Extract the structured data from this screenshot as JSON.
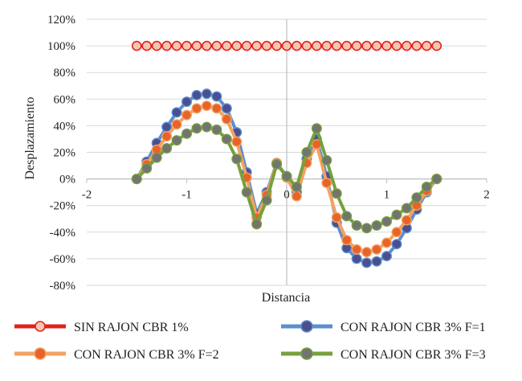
{
  "chart_data": {
    "type": "line",
    "xlabel": "Distancia",
    "ylabel": "Desplazamiento",
    "xlim": [
      -2,
      2
    ],
    "ylim": [
      -0.8,
      1.2
    ],
    "x_ticks": [
      "-2",
      "-1",
      "0",
      "1",
      "2"
    ],
    "y_ticks": [
      "-80%",
      "-60%",
      "-40%",
      "-20%",
      "0%",
      "20%",
      "40%",
      "60%",
      "80%",
      "100%",
      "120%"
    ],
    "grid": "horizontal",
    "legend_position": "bottom",
    "x": [
      -1.5,
      -1.4,
      -1.3,
      -1.2,
      -1.1,
      -1.0,
      -0.9,
      -0.8,
      -0.7,
      -0.6,
      -0.5,
      -0.4,
      -0.3,
      -0.2,
      -0.1,
      0.0,
      0.1,
      0.2,
      0.3,
      0.4,
      0.5,
      0.6,
      0.7,
      0.8,
      0.9,
      1.0,
      1.1,
      1.2,
      1.3,
      1.4,
      1.5
    ],
    "series": [
      {
        "name": "SIN RAJON CBR  1%",
        "color": "#e2231a",
        "marker_fill": "#f5c6b6",
        "values": [
          1,
          1,
          1,
          1,
          1,
          1,
          1,
          1,
          1,
          1,
          1,
          1,
          1,
          1,
          1,
          1,
          1,
          1,
          1,
          1,
          1,
          1,
          1,
          1,
          1,
          1,
          1,
          1,
          1,
          1,
          1
        ]
      },
      {
        "name": "CON RAJON CBR 3% F=1",
        "color": "#5b8fcf",
        "marker_fill": "#4b4f8f",
        "values": [
          0.0,
          0.13,
          0.27,
          0.39,
          0.5,
          0.58,
          0.63,
          0.64,
          0.62,
          0.53,
          0.35,
          0.05,
          -0.26,
          -0.1,
          0.12,
          0.02,
          -0.1,
          0.15,
          0.3,
          0.02,
          -0.33,
          -0.52,
          -0.6,
          -0.63,
          -0.62,
          -0.58,
          -0.49,
          -0.37,
          -0.23,
          -0.1,
          0.0
        ]
      },
      {
        "name": "CON RAJON CBR 3% F=2",
        "color": "#f4a261",
        "marker_fill": "#e8632a",
        "values": [
          0.0,
          0.11,
          0.22,
          0.32,
          0.41,
          0.48,
          0.53,
          0.55,
          0.53,
          0.45,
          0.28,
          0.01,
          -0.29,
          -0.12,
          0.12,
          0.01,
          -0.13,
          0.12,
          0.26,
          -0.03,
          -0.29,
          -0.46,
          -0.53,
          -0.55,
          -0.53,
          -0.48,
          -0.4,
          -0.31,
          -0.2,
          -0.09,
          0.0
        ]
      },
      {
        "name": "CON RAJON CBR 3% F=3",
        "color": "#77a03c",
        "marker_fill": "#737373",
        "values": [
          0.0,
          0.08,
          0.16,
          0.23,
          0.29,
          0.34,
          0.38,
          0.39,
          0.37,
          0.3,
          0.15,
          -0.1,
          -0.34,
          -0.16,
          0.11,
          0.02,
          -0.06,
          0.2,
          0.38,
          0.14,
          -0.11,
          -0.28,
          -0.35,
          -0.37,
          -0.35,
          -0.32,
          -0.27,
          -0.22,
          -0.14,
          -0.06,
          0.0
        ]
      }
    ]
  }
}
